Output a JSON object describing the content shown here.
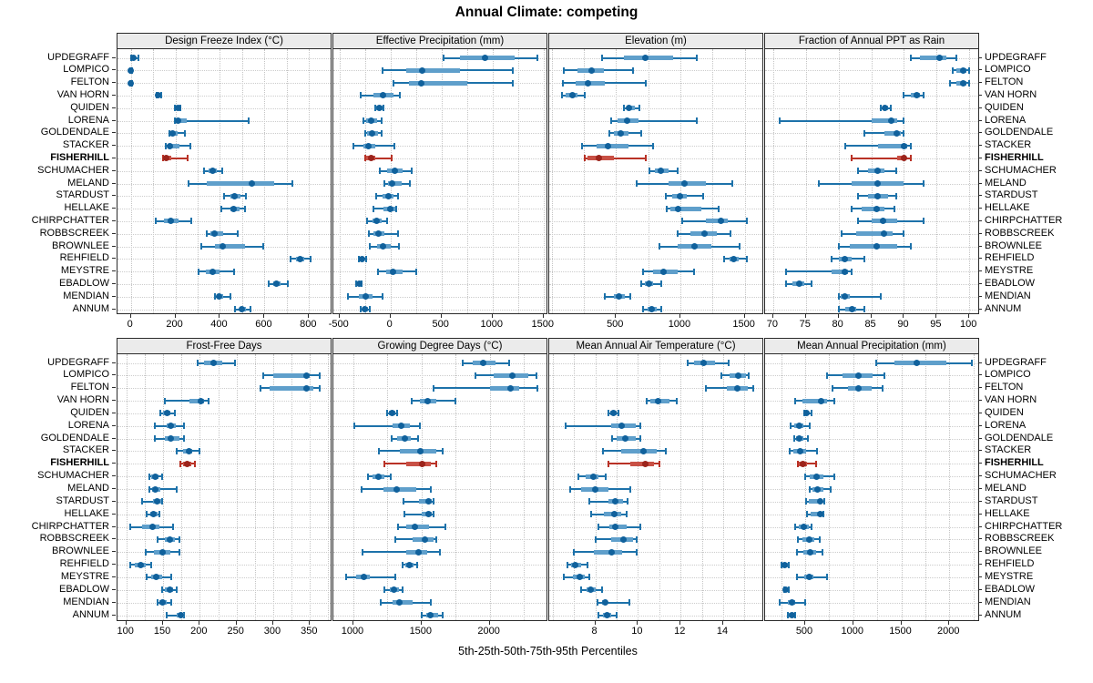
{
  "title": "Annual Climate: competing",
  "caption": "5th-25th-50th-75th-95th Percentiles",
  "highlight_station": "FISHERHILL",
  "colors": {
    "blue_line": "#1d72aa",
    "blue_fill": "#5f9fcb",
    "blue_dot": "#10619c",
    "red_line": "#b93226",
    "red_fill": "#c85045",
    "red_dot": "#9c241c",
    "grid": "#c4c4c4",
    "header_bg": "#ebebeb",
    "border": "#2b2b2b"
  },
  "stations": [
    "UPDEGRAFF",
    "LOMPICO",
    "FELTON",
    "VAN HORN",
    "QUIDEN",
    "LORENA",
    "GOLDENDALE",
    "STACKER",
    "FISHERHILL",
    "SCHUMACHER",
    "MELAND",
    "STARDUST",
    "HELLAKE",
    "CHIRPCHATTER",
    "ROBBSCREEK",
    "BROWNLEE",
    "REHFIELD",
    "MEYSTRE",
    "EBADLOW",
    "MENDIAN",
    "ANNUM"
  ],
  "chart_data": [
    {
      "type": "dotplot-percentiles",
      "title": "Design Freeze Index (°C)",
      "xlim": [
        -56,
        901
      ],
      "ticks": [
        0,
        200,
        400,
        600,
        800
      ],
      "grid_step": 100,
      "values": [
        [
          0,
          4,
          10,
          20,
          32
        ],
        [
          -4,
          -1,
          1,
          3,
          6
        ],
        [
          -4,
          -1,
          1,
          3,
          6
        ],
        [
          114,
          118,
          123,
          131,
          136
        ],
        [
          196,
          201,
          210,
          218,
          224
        ],
        [
          197,
          202,
          210,
          250,
          527
        ],
        [
          174,
          180,
          189,
          210,
          241
        ],
        [
          157,
          163,
          174,
          218,
          268
        ],
        [
          143,
          148,
          157,
          180,
          255
        ],
        [
          330,
          350,
          367,
          386,
          411
        ],
        [
          259,
          340,
          544,
          642,
          724
        ],
        [
          420,
          448,
          467,
          492,
          517
        ],
        [
          408,
          446,
          463,
          487,
          512
        ],
        [
          112,
          150,
          180,
          215,
          270
        ],
        [
          340,
          357,
          377,
          414,
          479
        ],
        [
          316,
          377,
          414,
          513,
          595
        ],
        [
          717,
          740,
          758,
          778,
          806
        ],
        [
          302,
          336,
          367,
          397,
          465
        ],
        [
          618,
          640,
          653,
          670,
          704
        ],
        [
          377,
          387,
          397,
          414,
          445
        ],
        [
          468,
          486,
          499,
          517,
          536
        ]
      ]
    },
    {
      "type": "dotplot-percentiles",
      "title": "Effective Precipitation (mm)",
      "xlim": [
        -551,
        1538
      ],
      "ticks": [
        -500,
        0,
        500,
        1000,
        1500
      ],
      "grid_step": 250,
      "values": [
        [
          520,
          680,
          925,
          1215,
          1440
        ],
        [
          -75,
          150,
          310,
          680,
          1200
        ],
        [
          25,
          180,
          305,
          755,
          1200
        ],
        [
          -295,
          -165,
          -75,
          30,
          90
        ],
        [
          -150,
          -138,
          -112,
          -80,
          -65
        ],
        [
          -265,
          -235,
          -185,
          -135,
          -90
        ],
        [
          -250,
          -228,
          -180,
          -124,
          -89
        ],
        [
          -365,
          -265,
          -213,
          -148,
          35
        ],
        [
          -250,
          -235,
          -185,
          -150,
          15
        ],
        [
          -105,
          -30,
          45,
          120,
          205
        ],
        [
          -60,
          -20,
          15,
          110,
          190
        ],
        [
          -140,
          -75,
          -20,
          30,
          75
        ],
        [
          -165,
          -70,
          -5,
          45,
          60
        ],
        [
          -230,
          -178,
          -140,
          -90,
          -30
        ],
        [
          -215,
          -165,
          -115,
          -60,
          70
        ],
        [
          -200,
          -135,
          -75,
          0,
          80
        ],
        [
          -310,
          -295,
          -278,
          -260,
          -240
        ],
        [
          -120,
          -40,
          25,
          120,
          255
        ],
        [
          -335,
          -320,
          -308,
          -295,
          -280
        ],
        [
          -415,
          -310,
          -243,
          -178,
          -80
        ],
        [
          -295,
          -275,
          -250,
          -225,
          -205
        ]
      ]
    },
    {
      "type": "dotplot-percentiles",
      "title": "Elevation (m)",
      "xlim": [
        -11,
        1644
      ],
      "ticks": [
        500,
        1000,
        1500
      ],
      "grid_step": 250,
      "values": [
        [
          390,
          565,
          730,
          945,
          1130
        ],
        [
          95,
          200,
          310,
          405,
          635
        ],
        [
          90,
          185,
          280,
          415,
          735
        ],
        [
          78,
          110,
          160,
          200,
          260
        ],
        [
          560,
          580,
          600,
          650,
          680
        ],
        [
          460,
          510,
          585,
          675,
          1125
        ],
        [
          450,
          485,
          540,
          595,
          695
        ],
        [
          235,
          350,
          440,
          595,
          790
        ],
        [
          255,
          280,
          365,
          485,
          730
        ],
        [
          760,
          805,
          850,
          910,
          980
        ],
        [
          660,
          910,
          1030,
          1200,
          1400
        ],
        [
          890,
          940,
          995,
          1050,
          1180
        ],
        [
          895,
          920,
          980,
          1160,
          1295
        ],
        [
          1015,
          1200,
          1315,
          1370,
          1520
        ],
        [
          980,
          1080,
          1185,
          1285,
          1390
        ],
        [
          840,
          980,
          1113,
          1238,
          1460
        ],
        [
          1340,
          1380,
          1415,
          1455,
          1520
        ],
        [
          710,
          790,
          870,
          980,
          1105
        ],
        [
          695,
          725,
          755,
          790,
          855
        ],
        [
          415,
          485,
          525,
          570,
          610
        ],
        [
          710,
          745,
          780,
          815,
          855
        ]
      ]
    },
    {
      "type": "dotplot-percentiles",
      "title": "Fraction of Annual PPT as Rain",
      "xlim": [
        68.9,
        101.5
      ],
      "ticks": [
        70,
        75,
        80,
        85,
        90,
        95,
        100
      ],
      "grid_step": 5,
      "values": [
        [
          91,
          92.5,
          95.5,
          96.5,
          98
        ],
        [
          97.5,
          98,
          99,
          99.5,
          100
        ],
        [
          97,
          98,
          99,
          99.5,
          100
        ],
        [
          90,
          91,
          92,
          92.5,
          93
        ],
        [
          86.5,
          86.8,
          87.1,
          87.6,
          88
        ],
        [
          71,
          85,
          88,
          89,
          90
        ],
        [
          84,
          87,
          88.9,
          89.5,
          90
        ],
        [
          81,
          86,
          90,
          90.5,
          91
        ],
        [
          82,
          89,
          90,
          90.4,
          91
        ],
        [
          83,
          84.5,
          86,
          87,
          88.8
        ],
        [
          77,
          82,
          86,
          90,
          93
        ],
        [
          83,
          84.5,
          86,
          87.5,
          88.8
        ],
        [
          82,
          83.5,
          85.8,
          87,
          88.5
        ],
        [
          83,
          85,
          86.8,
          89,
          93
        ],
        [
          80.5,
          82.7,
          87,
          88.2,
          90
        ],
        [
          80,
          81.7,
          85.8,
          88.9,
          91
        ],
        [
          79,
          80,
          81,
          82,
          84
        ],
        [
          72,
          79,
          81,
          81.5,
          82
        ],
        [
          72,
          73,
          74,
          74.8,
          75.8
        ],
        [
          80,
          80.3,
          81,
          81.7,
          86.5
        ],
        [
          80,
          81,
          82,
          82.7,
          84
        ]
      ]
    },
    {
      "type": "dotplot-percentiles",
      "title": "Frost-Free Days",
      "xlim": [
        89.2,
        379.4
      ],
      "ticks": [
        100,
        150,
        200,
        250,
        300,
        350
      ],
      "grid_step": 25,
      "values": [
        [
          197,
          206,
          219,
          231,
          248
        ],
        [
          287,
          300,
          345,
          350,
          363
        ],
        [
          283,
          295,
          345,
          355,
          363
        ],
        [
          153,
          186,
          201,
          206,
          212
        ],
        [
          146,
          150,
          156,
          160,
          166
        ],
        [
          139,
          155,
          161,
          167,
          179
        ],
        [
          139,
          152,
          160,
          172,
          178
        ],
        [
          168,
          177,
          185,
          190,
          200
        ],
        [
          173,
          177,
          183,
          188,
          193
        ],
        [
          131,
          134,
          139,
          144,
          149
        ],
        [
          131,
          135,
          140,
          146,
          168
        ],
        [
          121,
          136,
          142,
          147,
          149
        ],
        [
          128,
          133,
          137,
          142,
          145
        ],
        [
          105,
          121,
          136,
          145,
          164
        ],
        [
          142,
          152,
          159,
          166,
          172
        ],
        [
          127,
          138,
          149,
          160,
          172
        ],
        [
          105,
          112,
          119,
          127,
          134
        ],
        [
          128,
          134,
          141,
          149,
          161
        ],
        [
          149,
          153,
          159,
          164,
          169
        ],
        [
          142,
          145,
          149,
          155,
          161
        ],
        [
          155,
          168,
          174,
          178,
          179
        ]
      ]
    },
    {
      "type": "dotplot-percentiles",
      "title": "Growing Degree Days (°C)",
      "xlim": [
        860,
        2423
      ],
      "ticks": [
        1000,
        1500,
        2000
      ],
      "grid_step": 250,
      "values": [
        [
          1800,
          1875,
          1955,
          2040,
          2140
        ],
        [
          1895,
          2030,
          2165,
          2280,
          2340
        ],
        [
          1590,
          2005,
          2155,
          2215,
          2350
        ],
        [
          1430,
          1490,
          1545,
          1610,
          1750
        ],
        [
          1248,
          1264,
          1287,
          1310,
          1318
        ],
        [
          1010,
          1290,
          1350,
          1415,
          1490
        ],
        [
          1280,
          1320,
          1380,
          1420,
          1475
        ],
        [
          1190,
          1340,
          1490,
          1605,
          1655
        ],
        [
          1227,
          1390,
          1503,
          1570,
          1606
        ],
        [
          1110,
          1138,
          1183,
          1227,
          1272
        ],
        [
          1058,
          1220,
          1316,
          1460,
          1566
        ],
        [
          1370,
          1480,
          1548,
          1577,
          1590
        ],
        [
          1377,
          1500,
          1548,
          1577,
          1590
        ],
        [
          1325,
          1388,
          1450,
          1555,
          1672
        ],
        [
          1310,
          1437,
          1526,
          1588,
          1610
        ],
        [
          1065,
          1388,
          1480,
          1543,
          1632
        ],
        [
          1361,
          1383,
          1410,
          1443,
          1465
        ],
        [
          947,
          1020,
          1076,
          1120,
          1310
        ],
        [
          1227,
          1265,
          1298,
          1332,
          1361
        ],
        [
          1198,
          1287,
          1338,
          1432,
          1566
        ],
        [
          1500,
          1535,
          1565,
          1620,
          1655
        ]
      ]
    },
    {
      "type": "dotplot-percentiles",
      "title": "Mean Annual Air Temperature (°C)",
      "xlim": [
        5.88,
        15.88
      ],
      "ticks": [
        8,
        10,
        12,
        14
      ],
      "grid_step": 1,
      "values": [
        [
          12.35,
          12.65,
          13.1,
          13.6,
          14.25
        ],
        [
          13.9,
          14.3,
          14.7,
          15.05,
          15.2
        ],
        [
          13.2,
          14.15,
          14.65,
          15.15,
          15.4
        ],
        [
          10.4,
          10.6,
          10.95,
          11.5,
          11.8
        ],
        [
          8.6,
          8.7,
          8.85,
          9.0,
          9.1
        ],
        [
          6.6,
          8.75,
          9.25,
          9.9,
          10.1
        ],
        [
          8.8,
          9.0,
          9.4,
          9.9,
          10.1
        ],
        [
          8.35,
          9.2,
          10.25,
          10.9,
          11.3
        ],
        [
          8.6,
          9.65,
          10.35,
          10.75,
          11.0
        ],
        [
          7.2,
          7.55,
          7.9,
          8.15,
          8.5
        ],
        [
          6.8,
          7.35,
          8.0,
          8.6,
          9.65
        ],
        [
          7.7,
          8.6,
          8.95,
          9.3,
          9.5
        ],
        [
          7.8,
          8.4,
          8.9,
          9.2,
          9.45
        ],
        [
          8.15,
          8.65,
          8.95,
          9.45,
          10.1
        ],
        [
          8.0,
          8.75,
          9.3,
          9.75,
          9.95
        ],
        [
          7.0,
          7.95,
          8.75,
          9.25,
          9.95
        ],
        [
          6.7,
          6.85,
          7.05,
          7.35,
          7.65
        ],
        [
          6.5,
          6.95,
          7.25,
          7.5,
          7.7
        ],
        [
          7.35,
          7.6,
          7.8,
          8.0,
          8.3
        ],
        [
          8.1,
          8.3,
          8.45,
          8.55,
          9.6
        ],
        [
          8.15,
          8.35,
          8.55,
          8.75,
          9.0
        ]
      ]
    },
    {
      "type": "dotplot-percentiles",
      "title": "Mean Annual Precipitation (mm)",
      "xlim": [
        92.5,
        2310
      ],
      "ticks": [
        500,
        1000,
        1500,
        2000
      ],
      "grid_step": 250,
      "values": [
        [
          1240,
          1430,
          1665,
          1965,
          2230
        ],
        [
          730,
          890,
          1055,
          1205,
          1325
        ],
        [
          785,
          945,
          1050,
          1195,
          1310
        ],
        [
          400,
          470,
          670,
          730,
          805
        ],
        [
          490,
          495,
          515,
          540,
          565
        ],
        [
          350,
          390,
          435,
          485,
          550
        ],
        [
          385,
          405,
          440,
          480,
          530
        ],
        [
          335,
          375,
          445,
          510,
          625
        ],
        [
          425,
          435,
          480,
          520,
          615
        ],
        [
          500,
          550,
          620,
          690,
          805
        ],
        [
          550,
          575,
          625,
          690,
          770
        ],
        [
          510,
          540,
          658,
          680,
          700
        ],
        [
          520,
          555,
          658,
          675,
          690
        ],
        [
          395,
          435,
          490,
          540,
          565
        ],
        [
          425,
          470,
          540,
          595,
          650
        ],
        [
          415,
          480,
          555,
          615,
          680
        ],
        [
          255,
          265,
          288,
          318,
          325
        ],
        [
          415,
          490,
          540,
          585,
          730
        ],
        [
          280,
          290,
          300,
          315,
          330
        ],
        [
          230,
          320,
          365,
          395,
          500
        ],
        [
          320,
          330,
          358,
          385,
          395
        ]
      ]
    }
  ]
}
